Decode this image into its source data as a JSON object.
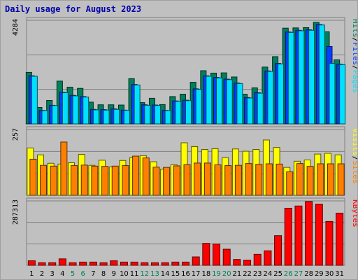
{
  "chart_data": {
    "type": "bar",
    "title": "Daily usage for August 2023",
    "categories": [
      "1",
      "2",
      "3",
      "4",
      "5",
      "6",
      "7",
      "8",
      "9",
      "10",
      "11",
      "12",
      "13",
      "14",
      "15",
      "16",
      "17",
      "18",
      "19",
      "20",
      "21",
      "22",
      "23",
      "24",
      "25",
      "26",
      "27",
      "28",
      "29",
      "30",
      "31"
    ],
    "weekend_days": [
      "5",
      "6",
      "12",
      "13",
      "19",
      "20",
      "26",
      "27"
    ],
    "colors": {
      "hits": "#00805c",
      "files": "#0040ff",
      "pages": "#00e0ff",
      "visits": "#ffff00",
      "sites": "#ff8000",
      "kbytes": "#ff0000",
      "title": "#0000aa",
      "weekend_tick": "#00805c",
      "weekday_tick": "#000000"
    },
    "panels": [
      {
        "id": "usage",
        "max_label": "4284",
        "max": 4284,
        "legend": [
          {
            "text": "Hits",
            "color": "#00805c"
          },
          {
            "text": "/",
            "color": "#000000"
          },
          {
            "text": "Files",
            "color": "#0040ff"
          },
          {
            "text": "/",
            "color": "#000000"
          },
          {
            "text": "Pages",
            "color": "#00e0ff"
          }
        ],
        "series": [
          {
            "name": "Hits",
            "color": "#00805c",
            "values": [
              2130,
              680,
              970,
              1770,
              1520,
              1470,
              900,
              790,
              790,
              780,
              1870,
              880,
              1060,
              800,
              1130,
              1230,
              1720,
              2200,
              2100,
              2110,
              1940,
              1230,
              1490,
              2350,
              2780,
              3960,
              3970,
              3980,
              4200,
              3810,
              2650
            ]
          },
          {
            "name": "Files",
            "color": "#0040ff",
            "values": [
              1990,
              560,
              770,
              1310,
              1180,
              1130,
              600,
              590,
              620,
              570,
              1630,
              790,
              780,
              560,
              950,
              980,
              1450,
              1990,
              1920,
              1850,
              1690,
              1090,
              1290,
              2190,
              2500,
              3800,
              3870,
              3890,
              4110,
              3200,
              2470
            ]
          },
          {
            "name": "Pages",
            "color": "#00e0ff",
            "values": [
              1970,
              550,
              760,
              1290,
              1160,
              1110,
              580,
              570,
              600,
              560,
              1610,
              770,
              760,
              550,
              930,
              960,
              1430,
              1970,
              1900,
              1830,
              1670,
              1070,
              1270,
              2170,
              2480,
              3780,
              3850,
              3870,
              4090,
              2500,
              2450
            ]
          }
        ]
      },
      {
        "id": "visitors",
        "max_label": "257",
        "max": 257,
        "legend": [
          {
            "text": "Visits",
            "color": "#ffff00"
          },
          {
            "text": "/",
            "color": "#000000"
          },
          {
            "text": "Sites",
            "color": "#ff8000"
          }
        ],
        "series": [
          {
            "name": "Visits",
            "color": "#ffff00",
            "values": [
              185,
              158,
              125,
              122,
              127,
              160,
              117,
              137,
              111,
              136,
              147,
              155,
              131,
              102,
              119,
              205,
              190,
              179,
              182,
              147,
              181,
              172,
              179,
              216,
              187,
              109,
              133,
              138,
              161,
              164,
              158
            ]
          },
          {
            "name": "Sites",
            "color": "#ff8000",
            "values": [
              141,
              117,
              114,
              208,
              116,
              118,
              114,
              113,
              114,
              116,
              153,
              146,
              110,
              109,
              115,
              120,
              126,
              126,
              119,
              116,
              117,
              124,
              121,
              123,
              122,
              92,
              124,
              113,
              123,
              123,
              123
            ]
          }
        ]
      },
      {
        "id": "traffic",
        "max_label": "287313",
        "max": 287313,
        "legend": [
          {
            "text": "KBytes",
            "color": "#ff0000"
          }
        ],
        "series": [
          {
            "name": "KBytes",
            "color": "#ff0000",
            "values": [
              20100,
              11500,
              11700,
              28700,
              11500,
              14400,
              14400,
              11500,
              20100,
              14400,
              14400,
              11700,
              11500,
              11500,
              14400,
              14400,
              37400,
              97700,
              94800,
              71800,
              25900,
              23000,
              48900,
              64700,
              132200,
              254600,
              264600,
              284400,
              272900,
              195500,
              232800
            ]
          }
        ]
      }
    ]
  }
}
